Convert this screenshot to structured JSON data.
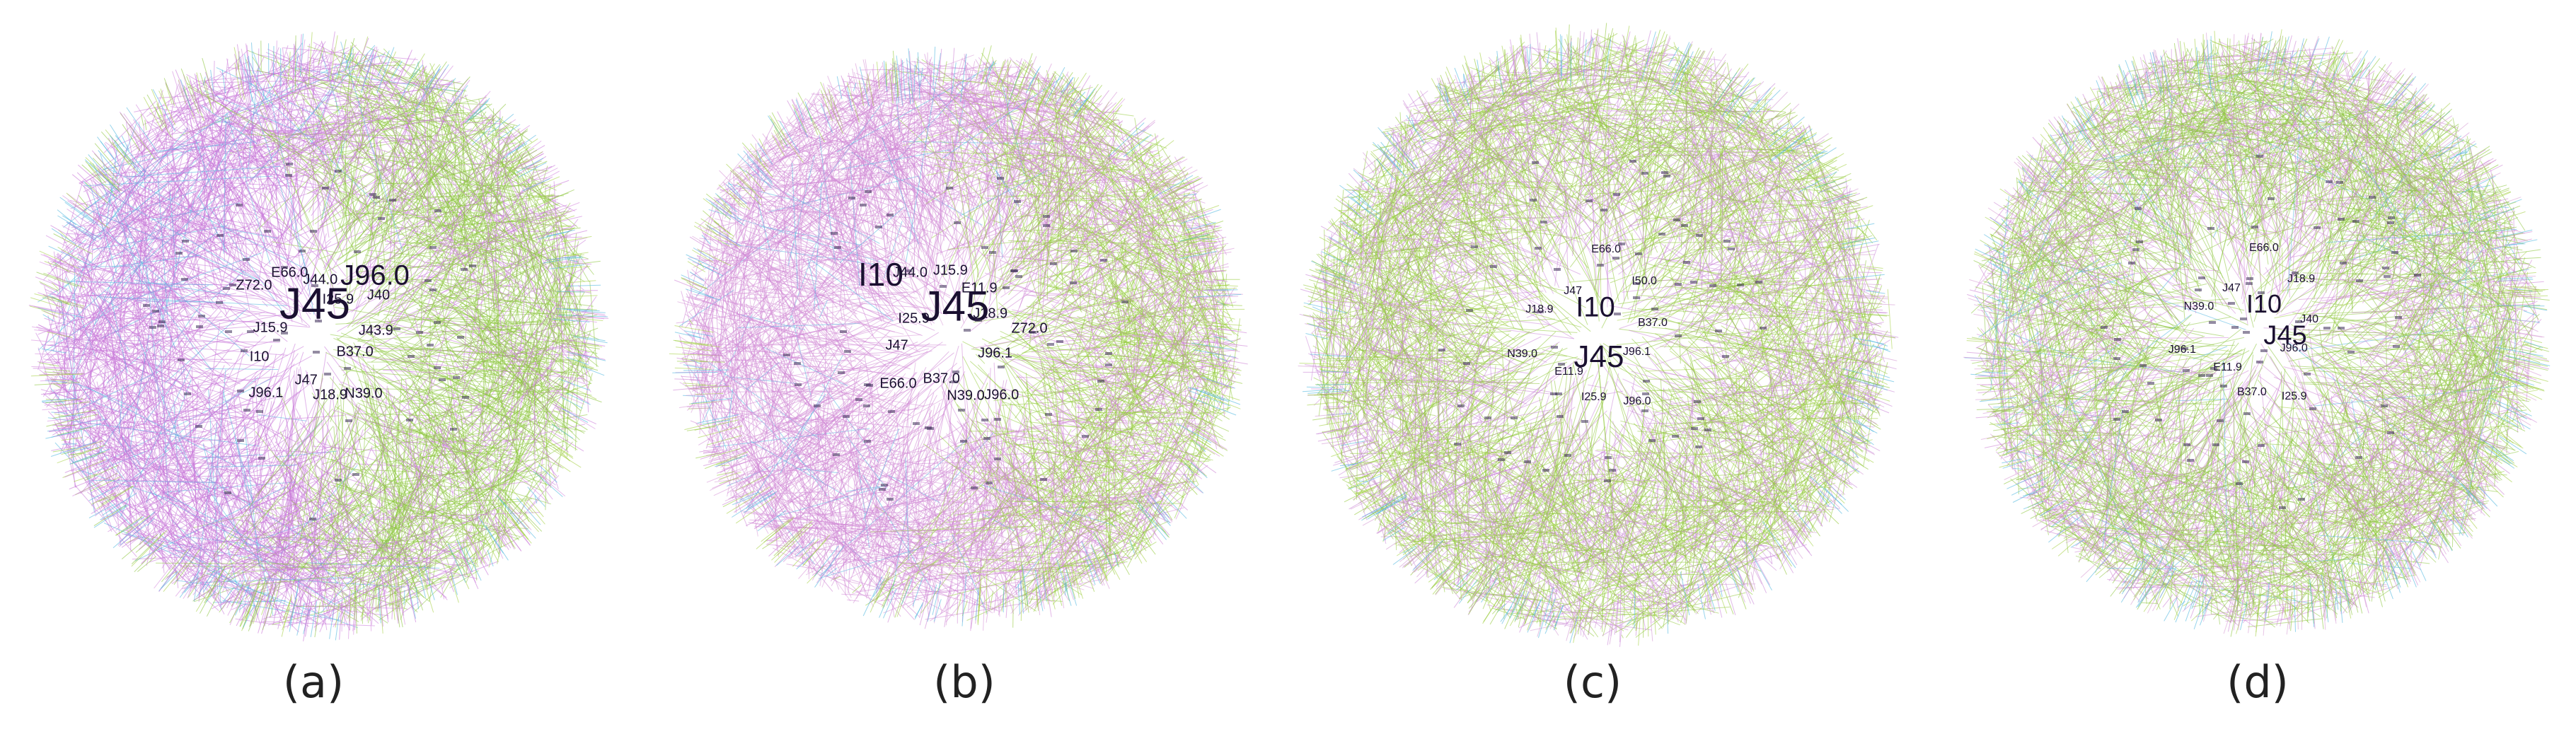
{
  "panels": [
    {
      "id": "a",
      "caption": "(a)",
      "big": [
        "J45",
        "J96.0"
      ],
      "medium": [
        "B37.0",
        "N39.0",
        "J18.9",
        "J47",
        "J96.1",
        "I10",
        "J15.9",
        "Z72.0",
        "E66.0",
        "J44.0",
        "I25.9",
        "J40",
        "J43.9"
      ],
      "palette": [
        "#c978d8",
        "#8ec63f",
        "#52b7e0",
        "#d690e0",
        "#a8d24a"
      ]
    },
    {
      "id": "b",
      "caption": "(b)",
      "big": [
        "J45",
        "I10"
      ],
      "medium": [
        "J96.1",
        "J96.0",
        "N39.0",
        "B37.0",
        "E66.0",
        "J47",
        "I25.9",
        "J44.0",
        "J15.9",
        "E11.9",
        "J18.9",
        "Z72.0"
      ],
      "palette": [
        "#cf86d6",
        "#96cc3e",
        "#52b7e0",
        "#d99ad8",
        "#a8d24a"
      ]
    },
    {
      "id": "c",
      "caption": "(c)",
      "big": [
        "J45",
        "I10"
      ],
      "medium": [
        "J96.1",
        "J96.0",
        "I25.9",
        "E11.9",
        "N39.0",
        "J18.9",
        "J47",
        "E66.0",
        "I50.0",
        "B37.0"
      ],
      "palette": [
        "#92c83a",
        "#cc8ad8",
        "#a5d246",
        "#d49bd4",
        "#52b7e0"
      ]
    },
    {
      "id": "d",
      "caption": "(d)",
      "big": [
        "J45",
        "I10"
      ],
      "medium": [
        "J96.0",
        "I25.9",
        "B37.0",
        "E11.9",
        "J96.1",
        "N39.0",
        "J47",
        "E66.0",
        "J18.9",
        "J40"
      ],
      "palette": [
        "#8ec63f",
        "#cf88d6",
        "#a6d048",
        "#52b7e0",
        "#d9a0d6"
      ]
    }
  ]
}
